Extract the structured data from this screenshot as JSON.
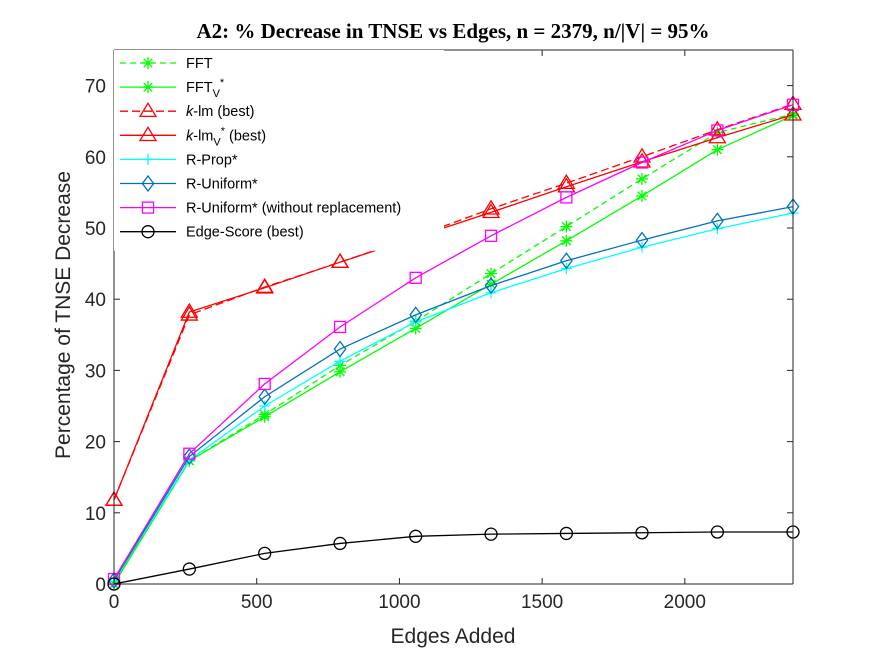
{
  "chart_data": {
    "type": "line",
    "title": "A2: % Decrease in TNSE vs Edges, n = 2379, n/|V| = 95%",
    "xlabel": "Edges Added",
    "ylabel": "Percentage of TNSE Decrease",
    "xlim": [
      0,
      2379
    ],
    "ylim": [
      0,
      75
    ],
    "xticks": [
      0,
      500,
      1000,
      1500,
      2000
    ],
    "yticks": [
      0,
      10,
      20,
      30,
      40,
      50,
      60,
      70
    ],
    "x": [
      0,
      264,
      528,
      792,
      1057,
      1321,
      1585,
      1850,
      2114,
      2379
    ],
    "legend_position": "top-left",
    "grid": false,
    "series": [
      {
        "name": "FFT",
        "label_main": "FFT",
        "color": "#00ff00",
        "dash": "6,4",
        "marker": "asterisk",
        "values": [
          0,
          17.3,
          23.8,
          30.7,
          36.9,
          43.6,
          50.2,
          56.9,
          63.4,
          66.0
        ]
      },
      {
        "name": "FFT_V*",
        "label_main": "FFT",
        "label_sub": "V",
        "label_sup": "*",
        "color": "#00ff00",
        "dash": "",
        "marker": "asterisk",
        "values": [
          0,
          17.3,
          23.5,
          29.8,
          35.9,
          42.1,
          48.2,
          54.5,
          61.0,
          65.8
        ]
      },
      {
        "name": "k-lm (best)",
        "label_italic": "k",
        "label_main": "-lm (best)",
        "color": "#ff0000",
        "dash": "8,4",
        "marker": "triangle",
        "values": [
          11.8,
          37.8,
          41.7,
          45.2,
          48.8,
          52.7,
          56.3,
          60.0,
          63.8,
          67.4
        ]
      },
      {
        "name": "k-lm_V* (best)",
        "label_italic": "k",
        "label_main": "-lm",
        "label_sub": "V",
        "label_sup": "*",
        "label_tail": " (best)",
        "color": "#ff0000",
        "dash": "",
        "marker": "triangle",
        "values": [
          11.8,
          38.2,
          41.6,
          45.2,
          48.7,
          52.2,
          55.8,
          59.3,
          62.7,
          65.9
        ]
      },
      {
        "name": "R-Prop*",
        "label_main": "R-Prop*",
        "color": "#00ffff",
        "dash": "",
        "marker": "plus",
        "values": [
          0.4,
          17.4,
          25.0,
          31.3,
          36.8,
          40.9,
          44.3,
          47.3,
          49.9,
          52.1
        ]
      },
      {
        "name": "R-Uniform*",
        "label_main": "R-Uniform*",
        "color": "#0072bd",
        "dash": "",
        "marker": "diamond",
        "values": [
          0.5,
          17.9,
          26.3,
          33.0,
          37.8,
          41.9,
          45.4,
          48.3,
          51.0,
          53.0
        ]
      },
      {
        "name": "R-Uniform* (without replacement)",
        "label_main": "R-Uniform* (without replacement)",
        "color": "#ff00ff",
        "dash": "",
        "marker": "square",
        "values": [
          0.7,
          18.3,
          28.1,
          36.1,
          43.0,
          48.9,
          54.3,
          59.2,
          63.7,
          67.3
        ]
      },
      {
        "name": "Edge-Score (best)",
        "label_main": "Edge-Score (best)",
        "color": "#000000",
        "dash": "",
        "marker": "circle",
        "values": [
          0,
          2.1,
          4.3,
          5.7,
          6.7,
          7.0,
          7.1,
          7.2,
          7.3,
          7.3
        ]
      }
    ]
  }
}
